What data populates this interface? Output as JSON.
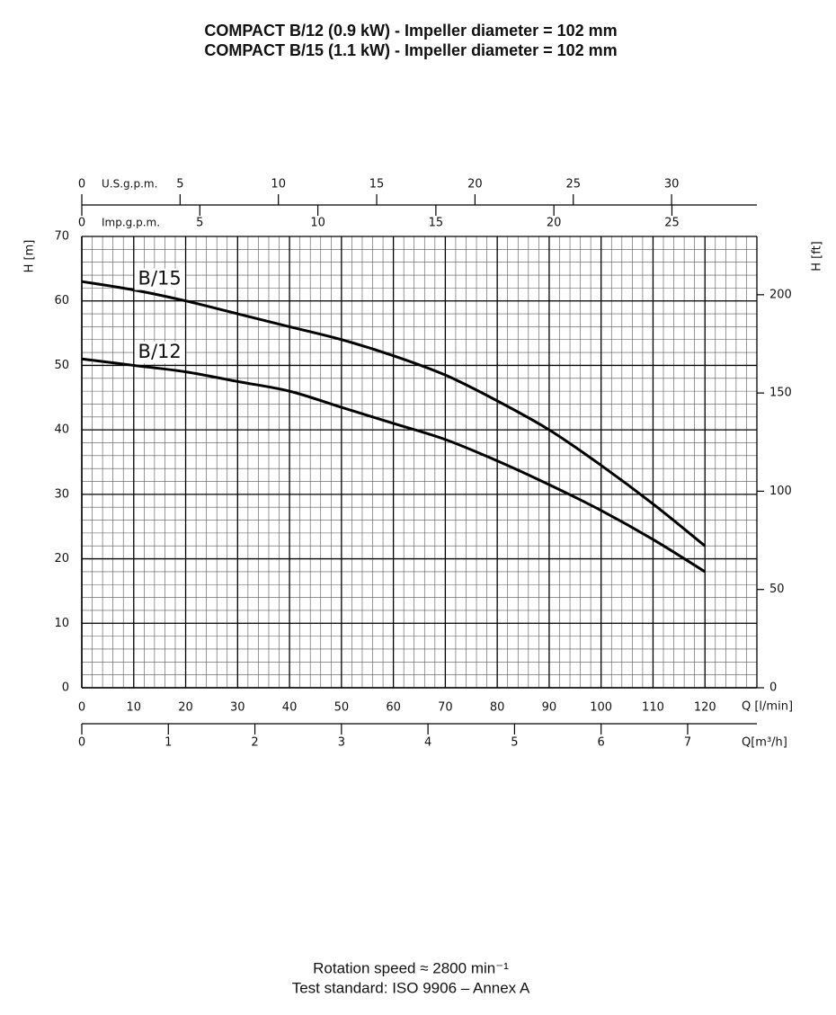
{
  "chart_data": {
    "type": "line",
    "title": [
      "COMPACT B/12 (0.9 kW) - Impeller diameter = 102 mm",
      "COMPACT B/15 (1.1 kW) - Impeller diameter = 102 mm"
    ],
    "x": [
      0,
      10,
      20,
      30,
      40,
      50,
      60,
      70,
      80,
      90,
      100,
      110,
      120
    ],
    "series": [
      {
        "name": "B/15",
        "color": "#000000",
        "values": [
          63,
          61.7,
          60,
          58,
          56,
          54,
          51.5,
          48.5,
          44.5,
          40,
          34.5,
          28.5,
          22
        ]
      },
      {
        "name": "B/12",
        "color": "#000000",
        "values": [
          51,
          50,
          49,
          47.5,
          46,
          43.5,
          41,
          38.5,
          35.2,
          31.5,
          27.5,
          23,
          18
        ]
      }
    ],
    "xlabel": "Q [l/min]",
    "xlim": [
      0,
      130
    ],
    "xticks": [
      0,
      10,
      20,
      30,
      40,
      50,
      60,
      70,
      80,
      90,
      100,
      110,
      120
    ],
    "ylabel": "H [m]",
    "ylim": [
      0,
      70
    ],
    "yticks": [
      0,
      10,
      20,
      30,
      40,
      50,
      60,
      70
    ],
    "y2label": "H [ft]",
    "y2lim": [
      0,
      229.66
    ],
    "y2ticks": [
      0,
      50,
      100,
      150,
      200
    ],
    "grid": true,
    "minor_grid": {
      "x": 2,
      "y": 2
    },
    "extra_x_axes": [
      {
        "label": "U.S.g.p.m.",
        "lim": [
          0,
          34.34
        ],
        "ticks": [
          0,
          5,
          10,
          15,
          20,
          25,
          30
        ]
      },
      {
        "label": "Imp.g.p.m.",
        "lim": [
          0,
          28.6
        ],
        "ticks": [
          0,
          5,
          10,
          15,
          20,
          25
        ]
      },
      {
        "label": "Q[m³/h]",
        "lim": [
          0,
          7.8
        ],
        "ticks": [
          0,
          1,
          2,
          3,
          4,
          5,
          6,
          7
        ]
      }
    ],
    "footer": [
      "Rotation speed ≈ 2800 min⁻¹",
      "Test standard: ISO 9906 – Annex A"
    ]
  }
}
